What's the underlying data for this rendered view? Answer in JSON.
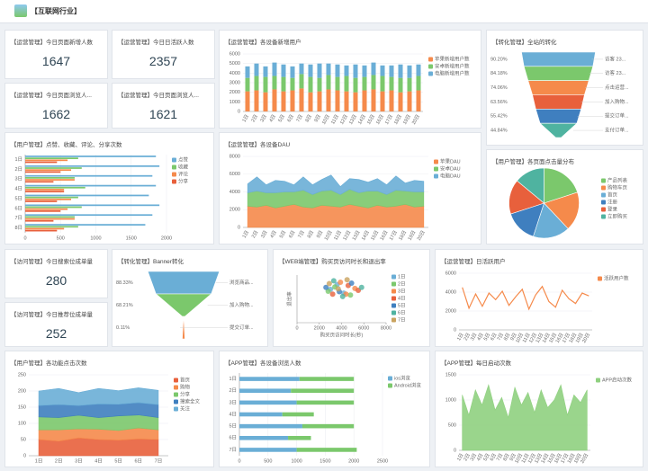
{
  "header": {
    "title": "【互联网行业】"
  },
  "kpis": [
    {
      "title": "【运营管理】今日页面新增人数",
      "value": "1647"
    },
    {
      "title": "【运营管理】今日日活跃人数",
      "value": "2357"
    },
    {
      "title": "【运营管理】今日页面浏览人...",
      "value": "1662"
    },
    {
      "title": "【运营管理】今日页面浏览人...",
      "value": "1621"
    },
    {
      "title": "【访问管理】今日搜索位成单量",
      "value": "280"
    },
    {
      "title": "【访问管理】今日推荐位成单量",
      "value": "252"
    }
  ],
  "chart_data": [
    {
      "type": "bar",
      "title": "【运营管理】各设备新增用户",
      "legend": "right",
      "grid": true,
      "rotate": true,
      "categories": [
        "1日",
        "2日",
        "3日",
        "4日",
        "5日",
        "6日",
        "7日",
        "8日",
        "9日",
        "10日",
        "11日",
        "12日",
        "13日",
        "14日",
        "15日",
        "16日",
        "17日",
        "18日",
        "19日",
        "20日"
      ],
      "ylim": [
        0,
        6000
      ],
      "yticks": [
        0,
        1000,
        2000,
        3000,
        4000,
        5000,
        6000
      ],
      "series": [
        {
          "name": "苹果新增用户数",
          "color": "#f58a4b",
          "values": [
            2100,
            2200,
            2000,
            2300,
            2100,
            2200,
            2400,
            2000,
            2100,
            2300,
            2200,
            2100,
            2000,
            2200,
            2300,
            2100,
            2200,
            2000,
            2100,
            2200
          ]
        },
        {
          "name": "安卓新增用户数",
          "color": "#7bc86c",
          "values": [
            1400,
            1500,
            1600,
            1400,
            1500,
            1300,
            1500,
            1600,
            1400,
            1500,
            1400,
            1600,
            1500,
            1400,
            1500,
            1600,
            1400,
            1500,
            1400,
            1500
          ]
        },
        {
          "name": "电脑新增用户数",
          "color": "#6aaed6",
          "values": [
            1200,
            1300,
            1100,
            1400,
            1300,
            1200,
            1100,
            1300,
            1500,
            1200,
            1300,
            1100,
            1400,
            1200,
            1300,
            1100,
            1200,
            1400,
            1300,
            1200
          ]
        }
      ]
    },
    {
      "type": "funnel",
      "title": "【转化管理】全站的转化",
      "categories": [
        "访客 23...",
        "访客 23...",
        "点击运营...",
        "加入购物...",
        "提交订单...",
        "支付订单..."
      ],
      "values": [
        90.2,
        84.18,
        74.06,
        63.56,
        55.42,
        44.84
      ],
      "value_labels": [
        "90.20%",
        "84.18%",
        "74.06%",
        "63.56%",
        "55.42%",
        "44.84%"
      ],
      "colors": [
        "#6aaed6",
        "#7bc86c",
        "#f58a4b",
        "#e8603c",
        "#3f7fbf",
        "#4fb3a0"
      ]
    },
    {
      "type": "hbar",
      "title": "【用户管理】点赞、收藏、评论、分享次数",
      "legend": "right",
      "grid": true,
      "categories": [
        "1日",
        "2日",
        "3日",
        "4日",
        "5日",
        "6日",
        "7日",
        "8日"
      ],
      "xlim": [
        0,
        2000
      ],
      "xticks": [
        0,
        500,
        1000,
        1500,
        2000
      ],
      "series": [
        {
          "name": "点赞",
          "color": "#6aaed6",
          "values": [
            1850,
            1900,
            1800,
            1850,
            1750,
            1900,
            1800,
            1700
          ]
        },
        {
          "name": "收藏",
          "color": "#7bc86c",
          "values": [
            750,
            800,
            700,
            850,
            750,
            800,
            700,
            750
          ]
        },
        {
          "name": "评论",
          "color": "#f58a4b",
          "values": [
            600,
            650,
            700,
            550,
            650,
            600,
            700,
            550
          ]
        },
        {
          "name": "分享",
          "color": "#e8603c",
          "values": [
            450,
            500,
            400,
            550,
            450,
            500,
            400,
            450
          ]
        }
      ]
    },
    {
      "type": "area",
      "title": "【运营管理】各设备DAU",
      "legend": "right",
      "grid": true,
      "rotate": true,
      "categories": [
        "1日",
        "2日",
        "3日",
        "4日",
        "5日",
        "6日",
        "7日",
        "8日",
        "9日",
        "10日",
        "11日",
        "12日",
        "13日",
        "14日",
        "15日",
        "16日",
        "17日",
        "18日",
        "19日",
        "20日"
      ],
      "ylim": [
        0,
        8000
      ],
      "yticks": [
        0,
        2000,
        4000,
        6000,
        8000
      ],
      "series": [
        {
          "name": "苹果DAU",
          "color": "#f58a4b",
          "values": [
            2400,
            2300,
            2500,
            2200,
            2400,
            2600,
            2300,
            2200,
            2500,
            2400,
            2300,
            2600,
            2400,
            2200,
            2500,
            2300,
            2400,
            2600,
            2300,
            2400
          ]
        },
        {
          "name": "安卓DAU",
          "color": "#7bc86c",
          "values": [
            1500,
            1800,
            1400,
            1700,
            1600,
            1400,
            1900,
            1500,
            1600,
            1800,
            1400,
            1700,
            1500,
            1900,
            1600,
            1400,
            1800,
            1500,
            1700,
            1600
          ]
        },
        {
          "name": "电脑DAU",
          "color": "#6aaed6",
          "values": [
            1000,
            1600,
            900,
            1400,
            1200,
            800,
            1500,
            1100,
            1300,
            1700,
            900,
            1200,
            1500,
            1000,
            1400,
            1100,
            1600,
            900,
            1300,
            1200
          ]
        }
      ]
    },
    {
      "type": "pie",
      "title": "【用户管理】各页面点击量分布",
      "legend": "right",
      "categories": [
        "产品列表",
        "购物车页",
        "首页",
        "注册",
        "登录",
        "立即购买"
      ],
      "values": [
        20,
        18,
        17,
        15,
        16,
        14
      ],
      "colors": [
        "#7bc86c",
        "#f58a4b",
        "#6aaed6",
        "#3f7fbf",
        "#e8603c",
        "#4fb3a0"
      ]
    },
    {
      "type": "funnel",
      "title": "【转化管理】Banner转化",
      "categories": [
        "浏览商品...",
        "加入购物...",
        "提交订单..."
      ],
      "values": [
        88.33,
        68.21,
        0.11
      ],
      "value_labels": [
        "88.33%",
        "68.21%",
        "0.11%"
      ],
      "colors": [
        "#6aaed6",
        "#7bc86c",
        "#f58a4b"
      ]
    },
    {
      "type": "scatter",
      "title": "【WEB端管理】购买页访问时长和退出率",
      "legend": "right",
      "xlabel": "购买页访问时长(秒)",
      "ylabel": "退出率",
      "xlim": [
        0,
        8000
      ],
      "xticks": [
        0,
        2000,
        4000,
        6000,
        8000
      ],
      "ylim": [
        0,
        100
      ],
      "series": [
        {
          "name": "1日",
          "color": "#6aaed6",
          "x": [
            3000,
            4200,
            3600
          ],
          "y": [
            70,
            62,
            80
          ]
        },
        {
          "name": "2日",
          "color": "#7bc86c",
          "x": [
            3400,
            4800,
            2800
          ],
          "y": [
            75,
            58,
            66
          ]
        },
        {
          "name": "3日",
          "color": "#f58a4b",
          "x": [
            3900,
            5200,
            4400
          ],
          "y": [
            85,
            72,
            60
          ]
        },
        {
          "name": "4日",
          "color": "#e8603c",
          "x": [
            3200,
            4600,
            5500
          ],
          "y": [
            60,
            78,
            68
          ]
        },
        {
          "name": "5日",
          "color": "#3f7fbf",
          "x": [
            3800,
            2600,
            4900
          ],
          "y": [
            65,
            74,
            83
          ]
        },
        {
          "name": "6日",
          "color": "#4fb3a0",
          "x": [
            4100,
            3300,
            5800
          ],
          "y": [
            55,
            88,
            74
          ]
        },
        {
          "name": "7日",
          "color": "#c9a35f",
          "x": [
            4500,
            3700,
            2900
          ],
          "y": [
            90,
            71,
            82
          ]
        }
      ]
    },
    {
      "type": "line",
      "title": "【运营管理】日活跃用户",
      "legend": "right",
      "grid": true,
      "rotate": true,
      "categories": [
        "1日",
        "2日",
        "3日",
        "4日",
        "5日",
        "6日",
        "7日",
        "8日",
        "9日",
        "10日",
        "11日",
        "12日",
        "13日",
        "14日",
        "15日",
        "16日",
        "17日",
        "18日",
        "19日",
        "20日"
      ],
      "ylim": [
        0,
        6000
      ],
      "yticks": [
        0,
        2000,
        4000,
        6000
      ],
      "series": [
        {
          "name": "活跃用户数",
          "color": "#f58a4b",
          "values": [
            4500,
            2300,
            3800,
            2500,
            3900,
            3200,
            4100,
            2600,
            3500,
            4300,
            2200,
            3700,
            4600,
            3000,
            2400,
            4200,
            3300,
            2800,
            3900,
            3600
          ]
        }
      ]
    },
    {
      "type": "area",
      "title": "【用户管理】各功能点击次数",
      "legend": "right",
      "grid": true,
      "categories": [
        "1日",
        "2日",
        "3日",
        "4日",
        "5日",
        "6日",
        "7日"
      ],
      "ylim": [
        0,
        250
      ],
      "yticks": [
        0,
        50,
        100,
        150,
        200,
        250
      ],
      "series": [
        {
          "name": "首页",
          "color": "#e8603c",
          "values": [
            50,
            45,
            55,
            50,
            48,
            52,
            50
          ]
        },
        {
          "name": "购物",
          "color": "#f58a4b",
          "values": [
            30,
            35,
            28,
            32,
            30,
            34,
            30
          ]
        },
        {
          "name": "分享",
          "color": "#7bc86c",
          "values": [
            40,
            38,
            42,
            36,
            45,
            40,
            38
          ]
        },
        {
          "name": "搜索全文",
          "color": "#3f7fbf",
          "values": [
            35,
            40,
            30,
            42,
            36,
            38,
            40
          ]
        },
        {
          "name": "关注",
          "color": "#6aaed6",
          "values": [
            45,
            50,
            40,
            48,
            42,
            46,
            44
          ]
        }
      ]
    },
    {
      "type": "hbar",
      "title": "【APP管理】各设备浏览人数",
      "legend": "right",
      "grid": true,
      "stacked": true,
      "categories": [
        "1日",
        "2日",
        "3日",
        "4日",
        "5日",
        "6日",
        "7日"
      ],
      "xlim": [
        0,
        2500
      ],
      "xticks": [
        0,
        500,
        1000,
        1500,
        2000,
        2500
      ],
      "series": [
        {
          "name": "ios浏览",
          "color": "#6aaed6",
          "values": [
            1050,
            900,
            1000,
            750,
            1100,
            850,
            1000
          ]
        },
        {
          "name": "Android浏览",
          "color": "#7bc86c",
          "values": [
            950,
            1100,
            1000,
            550,
            900,
            400,
            1050
          ]
        }
      ]
    },
    {
      "type": "area",
      "title": "【APP管理】每日启动次数",
      "legend": "right",
      "grid": true,
      "rotate": true,
      "categories": [
        "1日",
        "2日",
        "3日",
        "4日",
        "5日",
        "6日",
        "7日",
        "8日",
        "9日",
        "10日",
        "11日",
        "12日",
        "13日",
        "14日",
        "15日",
        "16日",
        "17日",
        "18日",
        "19日",
        "20日"
      ],
      "ylim": [
        0,
        1500
      ],
      "yticks": [
        0,
        500,
        1000,
        1500
      ],
      "series": [
        {
          "name": "APP启动次数",
          "color": "#8fd07f",
          "values": [
            1100,
            700,
            1200,
            900,
            1300,
            800,
            1050,
            650,
            1250,
            900,
            1150,
            750,
            1200,
            850,
            1000,
            1300,
            700,
            1100,
            950,
            1200
          ]
        }
      ]
    }
  ]
}
